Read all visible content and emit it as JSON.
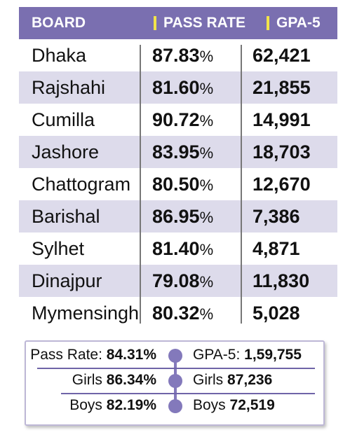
{
  "header": {
    "board": "BOARD",
    "pass_rate": "PASS RATE",
    "gpa5": "GPA-5"
  },
  "rows": [
    {
      "board": "Dhaka",
      "pass": "87.83",
      "gpa": "62,421"
    },
    {
      "board": "Rajshahi",
      "pass": "81.60",
      "gpa": "21,855"
    },
    {
      "board": "Cumilla",
      "pass": "90.72",
      "gpa": "14,991"
    },
    {
      "board": "Jashore",
      "pass": "83.95",
      "gpa": "18,703"
    },
    {
      "board": "Chattogram",
      "pass": "80.50",
      "gpa": "12,670"
    },
    {
      "board": "Barishal",
      "pass": "86.95",
      "gpa": "7,386"
    },
    {
      "board": "Sylhet",
      "pass": "81.40",
      "gpa": "4,871"
    },
    {
      "board": "Dinajpur",
      "pass": "79.08",
      "gpa": "11,830"
    },
    {
      "board": "Mymensingh",
      "pass": "80.32",
      "gpa": "5,028"
    }
  ],
  "pct_symbol": "%",
  "summary": {
    "pass_label": "Pass Rate:",
    "pass_value": "84.31%",
    "gpa_label": "GPA-5:",
    "gpa_value": "1,59,755",
    "girls_label": "Girls",
    "girls_pass": "86.34%",
    "girls_gpa": "87,236",
    "boys_label": "Boys",
    "boys_pass": "82.19%",
    "boys_gpa": "72,519"
  },
  "colors": {
    "header_bg": "#7a6fb0",
    "stripe": "#dddbeb",
    "accent": "#f2e34a"
  }
}
